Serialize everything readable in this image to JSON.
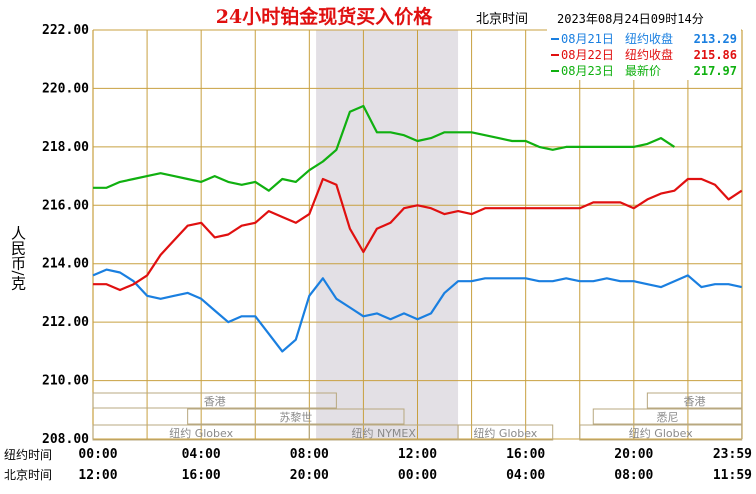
{
  "chart_data": {
    "type": "line",
    "title": "24小时铂金现货买入价格",
    "timestamp_label": "北京时间",
    "timestamp": "2023年08月24日09时14分",
    "ylabel": "人民币/克",
    "ylim": [
      208,
      222
    ],
    "yticks": [
      "222.00",
      "220.00",
      "218.00",
      "216.00",
      "214.00",
      "212.00",
      "210.00",
      "208.00"
    ],
    "grid": true,
    "legend_position": "top-right",
    "row_labels": [
      "纽约时间",
      "北京时间"
    ],
    "xticks_ny": [
      "00:00",
      "04:00",
      "08:00",
      "12:00",
      "16:00",
      "20:00",
      "23:59"
    ],
    "xticks_bj": [
      "12:00",
      "16:00",
      "20:00",
      "00:00",
      "04:00",
      "08:00",
      "11:59"
    ],
    "sessions": [
      {
        "label": "香港",
        "start": 0,
        "end": 9,
        "row": 1
      },
      {
        "label": "香港",
        "start": 20.5,
        "end": 23.99,
        "row": 1
      },
      {
        "label": "苏黎世",
        "start": 3.5,
        "end": 11.5,
        "row": 2
      },
      {
        "label": "悉尼",
        "start": 18.5,
        "end": 23.99,
        "row": 2
      },
      {
        "label": "纽约 Globex",
        "start": 0,
        "end": 8,
        "row": 3
      },
      {
        "label": "纽约 NYMEX",
        "start": 8,
        "end": 13.5,
        "row": 3
      },
      {
        "label": "纽约 Globex",
        "start": 13.5,
        "end": 17,
        "row": 3
      },
      {
        "label": "纽约 Globex",
        "start": 18,
        "end": 23.99,
        "row": 3
      }
    ],
    "highlight_range": [
      8.25,
      13.5
    ],
    "series": [
      {
        "name": "08月21日",
        "legend_label": "纽约收盘",
        "legend_value": "213.29",
        "color": "#1a7fe0",
        "x": [
          0,
          0.5,
          1,
          1.5,
          2,
          2.5,
          3,
          3.5,
          4,
          4.5,
          5,
          5.5,
          6,
          6.5,
          7,
          7.5,
          8,
          8.5,
          9,
          9.5,
          10,
          10.5,
          11,
          11.5,
          12,
          12.5,
          13,
          13.5,
          14,
          14.5,
          15,
          15.5,
          16,
          16.5,
          17,
          17.5,
          18,
          18.5,
          19,
          19.5,
          20,
          20.5,
          21,
          21.5,
          22,
          22.5,
          23,
          23.5,
          23.99
        ],
        "y": [
          213.6,
          213.8,
          213.7,
          213.4,
          212.9,
          212.8,
          212.9,
          213.0,
          212.8,
          212.4,
          212.0,
          212.2,
          212.2,
          211.6,
          211.0,
          211.4,
          212.9,
          213.5,
          212.8,
          212.5,
          212.2,
          212.3,
          212.1,
          212.3,
          212.1,
          212.3,
          213.0,
          213.4,
          213.4,
          213.5,
          213.5,
          213.5,
          213.5,
          213.4,
          213.4,
          213.5,
          213.4,
          213.4,
          213.5,
          213.4,
          213.4,
          213.3,
          213.2,
          213.4,
          213.6,
          213.2,
          213.3,
          213.3,
          213.2
        ]
      },
      {
        "name": "08月22日",
        "legend_label": "纽约收盘",
        "legend_value": "215.86",
        "color": "#e01010",
        "x": [
          0,
          0.5,
          1,
          1.5,
          2,
          2.5,
          3,
          3.5,
          4,
          4.5,
          5,
          5.5,
          6,
          6.5,
          7,
          7.5,
          8,
          8.5,
          9,
          9.5,
          10,
          10.5,
          11,
          11.5,
          12,
          12.5,
          13,
          13.5,
          14,
          14.5,
          15,
          15.5,
          16,
          16.5,
          17,
          17.5,
          18,
          18.5,
          19,
          19.5,
          20,
          20.5,
          21,
          21.5,
          22,
          22.5,
          23,
          23.5,
          23.99
        ],
        "y": [
          213.3,
          213.3,
          213.1,
          213.3,
          213.6,
          214.3,
          214.8,
          215.3,
          215.4,
          214.9,
          215.0,
          215.3,
          215.4,
          215.8,
          215.6,
          215.4,
          215.7,
          216.9,
          216.7,
          215.2,
          214.4,
          215.2,
          215.4,
          215.9,
          216.0,
          215.9,
          215.7,
          215.8,
          215.7,
          215.9,
          215.9,
          215.9,
          215.9,
          215.9,
          215.9,
          215.9,
          215.9,
          216.1,
          216.1,
          216.1,
          215.9,
          216.2,
          216.4,
          216.5,
          216.9,
          216.9,
          216.7,
          216.2,
          216.5
        ]
      },
      {
        "name": "08月23日",
        "legend_label": "最新价",
        "legend_value": "217.97",
        "color": "#10b010",
        "x": [
          0,
          0.5,
          1,
          1.5,
          2,
          2.5,
          3,
          3.5,
          4,
          4.5,
          5,
          5.5,
          6,
          6.5,
          7,
          7.5,
          8,
          8.5,
          9,
          9.5,
          10,
          10.5,
          11,
          11.5,
          12,
          12.5,
          13,
          13.5,
          14,
          14.5,
          15,
          15.5,
          16,
          16.5,
          17,
          17.5,
          18,
          18.5,
          19,
          19.5,
          20,
          20.5,
          21,
          21.5
        ],
        "y": [
          216.6,
          216.6,
          216.8,
          216.9,
          217.0,
          217.1,
          217.0,
          216.9,
          216.8,
          217.0,
          216.8,
          216.7,
          216.8,
          216.5,
          216.9,
          216.8,
          217.2,
          217.5,
          217.9,
          219.2,
          219.4,
          218.5,
          218.5,
          218.4,
          218.2,
          218.3,
          218.5,
          218.5,
          218.5,
          218.4,
          218.3,
          218.2,
          218.2,
          218.0,
          217.9,
          218.0,
          218.0,
          218.0,
          218.0,
          218.0,
          218.0,
          218.1,
          218.3,
          218.0
        ]
      }
    ]
  }
}
